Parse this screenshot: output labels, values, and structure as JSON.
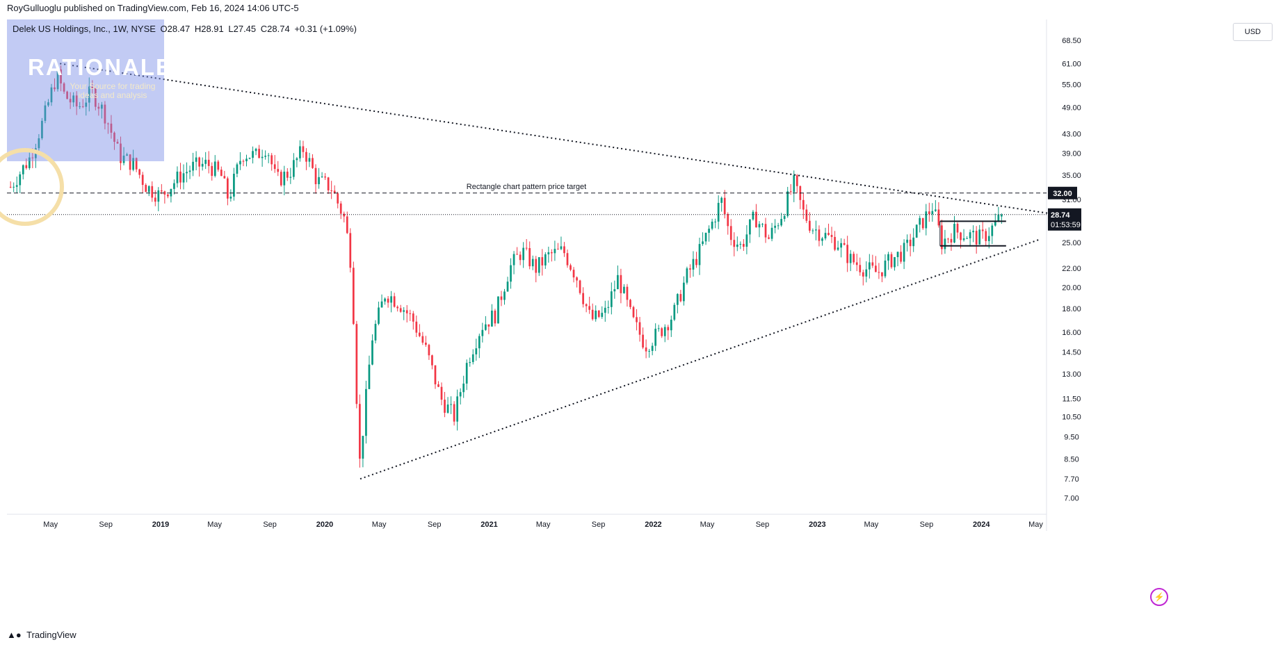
{
  "header": {
    "publisher": "RoyGulluoglu published on TradingView.com, Feb 16, 2024 14:06 UTC-5"
  },
  "symbol": {
    "name": "Delek US Holdings, Inc., 1W, NYSE",
    "open": "O28.47",
    "high": "H28.91",
    "low": "L27.45",
    "close": "C28.74",
    "change": "+0.31 (+1.09%)"
  },
  "logo": {
    "title": "RATIONALE",
    "subtitle": "Your Source for trading ideas and analysis"
  },
  "currency": "USD",
  "footer": {
    "brand": "TradingView"
  },
  "colors": {
    "up": "#089981",
    "down": "#f23645",
    "line": "#131722"
  },
  "chart_data": {
    "type": "candlestick",
    "scale": "log",
    "ylim": [
      6.5,
      76
    ],
    "y_ticks": [
      {
        "value": 68.5,
        "label": "68.50"
      },
      {
        "value": 61.0,
        "label": "61.00"
      },
      {
        "value": 55.0,
        "label": "55.00"
      },
      {
        "value": 49.0,
        "label": "49.00"
      },
      {
        "value": 43.0,
        "label": "43.00"
      },
      {
        "value": 39.0,
        "label": "39.00"
      },
      {
        "value": 35.0,
        "label": "35.00"
      },
      {
        "value": 31.0,
        "label": "31.00"
      },
      {
        "value": 25.0,
        "label": "25.00"
      },
      {
        "value": 22.0,
        "label": "22.00"
      },
      {
        "value": 20.0,
        "label": "20.00"
      },
      {
        "value": 18.0,
        "label": "18.00"
      },
      {
        "value": 16.0,
        "label": "16.00"
      },
      {
        "value": 14.5,
        "label": "14.50"
      },
      {
        "value": 13.0,
        "label": "13.00"
      },
      {
        "value": 11.5,
        "label": "11.50"
      },
      {
        "value": 10.5,
        "label": "10.50"
      },
      {
        "value": 9.5,
        "label": "9.50"
      },
      {
        "value": 8.5,
        "label": "8.50"
      },
      {
        "value": 7.7,
        "label": "7.70"
      },
      {
        "value": 7.0,
        "label": "7.00"
      }
    ],
    "x_ticks": [
      {
        "date": "2018-05-01",
        "label": "May"
      },
      {
        "date": "2018-09-01",
        "label": "Sep"
      },
      {
        "date": "2019-01-01",
        "label": "2019",
        "bold": true
      },
      {
        "date": "2019-05-01",
        "label": "May"
      },
      {
        "date": "2019-09-01",
        "label": "Sep"
      },
      {
        "date": "2020-01-01",
        "label": "2020",
        "bold": true
      },
      {
        "date": "2020-05-01",
        "label": "May"
      },
      {
        "date": "2020-09-01",
        "label": "Sep"
      },
      {
        "date": "2021-01-01",
        "label": "2021",
        "bold": true
      },
      {
        "date": "2021-05-01",
        "label": "May"
      },
      {
        "date": "2021-09-01",
        "label": "Sep"
      },
      {
        "date": "2022-01-01",
        "label": "2022",
        "bold": true
      },
      {
        "date": "2022-05-01",
        "label": "May"
      },
      {
        "date": "2022-09-01",
        "label": "Sep"
      },
      {
        "date": "2023-01-01",
        "label": "2023",
        "bold": true
      },
      {
        "date": "2023-05-01",
        "label": "May"
      },
      {
        "date": "2023-09-01",
        "label": "Sep"
      },
      {
        "date": "2024-01-01",
        "label": "2024",
        "bold": true
      },
      {
        "date": "2024-05-01",
        "label": "May"
      }
    ],
    "closes": [
      {
        "date": "2018-02-01",
        "close": 33.0
      },
      {
        "date": "2018-03-15",
        "close": 38.0
      },
      {
        "date": "2018-04-15",
        "close": 46.0
      },
      {
        "date": "2018-05-15",
        "close": 58.0
      },
      {
        "date": "2018-06-01",
        "close": 52.0
      },
      {
        "date": "2018-07-01",
        "close": 49.0
      },
      {
        "date": "2018-08-01",
        "close": 53.0
      },
      {
        "date": "2018-09-01",
        "close": 47.0
      },
      {
        "date": "2018-10-01",
        "close": 38.5
      },
      {
        "date": "2018-11-01",
        "close": 37.0
      },
      {
        "date": "2018-12-01",
        "close": 33.0
      },
      {
        "date": "2019-01-01",
        "close": 31.5
      },
      {
        "date": "2019-02-15",
        "close": 35.0
      },
      {
        "date": "2019-03-15",
        "close": 36.5
      },
      {
        "date": "2019-04-15",
        "close": 37.0
      },
      {
        "date": "2019-05-15",
        "close": 35.0
      },
      {
        "date": "2019-06-01",
        "close": 31.0
      },
      {
        "date": "2019-07-01",
        "close": 39.0
      },
      {
        "date": "2019-08-01",
        "close": 38.5
      },
      {
        "date": "2019-08-25",
        "close": 40.5
      },
      {
        "date": "2019-09-15",
        "close": 34.0
      },
      {
        "date": "2019-10-15",
        "close": 35.5
      },
      {
        "date": "2019-11-15",
        "close": 40.0
      },
      {
        "date": "2019-12-15",
        "close": 34.0
      },
      {
        "date": "2020-01-15",
        "close": 33.0
      },
      {
        "date": "2020-02-15",
        "close": 28.0
      },
      {
        "date": "2020-03-01",
        "close": 22.0
      },
      {
        "date": "2020-03-18",
        "close": 8.2
      },
      {
        "date": "2020-04-15",
        "close": 15.5
      },
      {
        "date": "2020-05-15",
        "close": 19.5
      },
      {
        "date": "2020-06-15",
        "close": 18.5
      },
      {
        "date": "2020-07-15",
        "close": 17.0
      },
      {
        "date": "2020-08-15",
        "close": 14.5
      },
      {
        "date": "2020-09-15",
        "close": 11.5
      },
      {
        "date": "2020-10-15",
        "close": 10.5
      },
      {
        "date": "2020-11-15",
        "close": 14.0
      },
      {
        "date": "2020-12-15",
        "close": 16.5
      },
      {
        "date": "2021-01-15",
        "close": 17.5
      },
      {
        "date": "2021-02-15",
        "close": 22.0
      },
      {
        "date": "2021-03-15",
        "close": 24.0
      },
      {
        "date": "2021-04-15",
        "close": 22.0
      },
      {
        "date": "2021-05-15",
        "close": 23.5
      },
      {
        "date": "2021-06-15",
        "close": 24.0
      },
      {
        "date": "2021-07-15",
        "close": 21.0
      },
      {
        "date": "2021-08-15",
        "close": 17.0
      },
      {
        "date": "2021-09-15",
        "close": 17.5
      },
      {
        "date": "2021-10-15",
        "close": 21.0
      },
      {
        "date": "2021-11-15",
        "close": 17.0
      },
      {
        "date": "2021-12-15",
        "close": 15.0
      },
      {
        "date": "2022-01-15",
        "close": 16.0
      },
      {
        "date": "2022-02-15",
        "close": 17.5
      },
      {
        "date": "2022-03-15",
        "close": 21.0
      },
      {
        "date": "2022-04-15",
        "close": 24.0
      },
      {
        "date": "2022-05-15",
        "close": 28.0
      },
      {
        "date": "2022-06-01",
        "close": 31.0
      },
      {
        "date": "2022-06-20",
        "close": 26.0
      },
      {
        "date": "2022-07-15",
        "close": 24.5
      },
      {
        "date": "2022-08-15",
        "close": 28.5
      },
      {
        "date": "2022-09-15",
        "close": 25.5
      },
      {
        "date": "2022-10-15",
        "close": 29.0
      },
      {
        "date": "2022-11-10",
        "close": 33.5
      },
      {
        "date": "2022-12-01",
        "close": 29.0
      },
      {
        "date": "2022-12-20",
        "close": 27.0
      },
      {
        "date": "2023-01-15",
        "close": 26.0
      },
      {
        "date": "2023-02-15",
        "close": 25.0
      },
      {
        "date": "2023-03-15",
        "close": 23.0
      },
      {
        "date": "2023-04-15",
        "close": 22.0
      },
      {
        "date": "2023-05-15",
        "close": 21.5
      },
      {
        "date": "2023-06-15",
        "close": 23.0
      },
      {
        "date": "2023-07-15",
        "close": 24.0
      },
      {
        "date": "2023-08-15",
        "close": 27.0
      },
      {
        "date": "2023-09-15",
        "close": 30.0
      },
      {
        "date": "2023-10-05",
        "close": 25.0
      },
      {
        "date": "2023-11-01",
        "close": 26.5
      },
      {
        "date": "2023-12-01",
        "close": 26.0
      },
      {
        "date": "2024-01-01",
        "close": 25.5
      },
      {
        "date": "2024-01-20",
        "close": 26.5
      },
      {
        "date": "2024-02-16",
        "close": 28.74
      }
    ],
    "current_price": {
      "value": 28.74,
      "label": "28.74",
      "countdown": "01:53:59"
    },
    "price_target": {
      "value": 32.0,
      "label": "32.00",
      "annotation": "Rectangle chart pattern price target"
    },
    "trendlines": [
      {
        "name": "upper",
        "points": [
          {
            "date": "2018-05-22",
            "value": 61.0
          },
          {
            "date": "2024-06-01",
            "value": 28.9
          }
        ]
      },
      {
        "name": "lower",
        "points": [
          {
            "date": "2020-03-20",
            "value": 7.7
          },
          {
            "date": "2024-05-10",
            "value": 25.4
          }
        ]
      }
    ],
    "rectangle": {
      "from": "2023-10-01",
      "to": "2024-02-25",
      "top": 27.8,
      "bottom": 24.6
    }
  }
}
